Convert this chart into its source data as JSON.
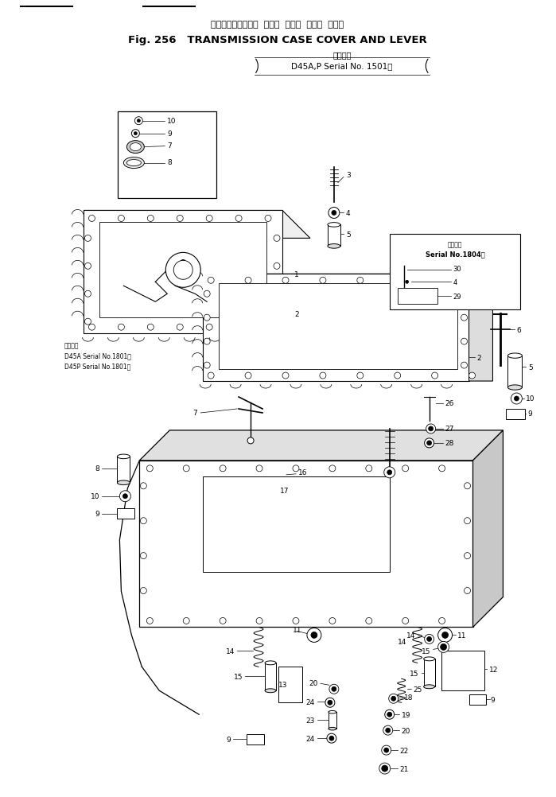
{
  "title_japanese": "トランスミッション  ケース  カバー  および  レバー",
  "title_english": "Fig. 256   TRANSMISSION CASE COVER AND LEVER",
  "serial_line1": "適用号機",
  "serial_line2": "D45A,P Serial No. 1501～",
  "serial_note_jp": "適用号機",
  "serial_note1": "D45A Serial No.1801～",
  "serial_note2": "D45P Serial No.1801～",
  "serial2_line1": "適用号機",
  "serial2_line2": "Serial No.1804～",
  "bg": "#ffffff",
  "lc": "#000000",
  "fig_width": 6.99,
  "fig_height": 10.03,
  "dpi": 100
}
